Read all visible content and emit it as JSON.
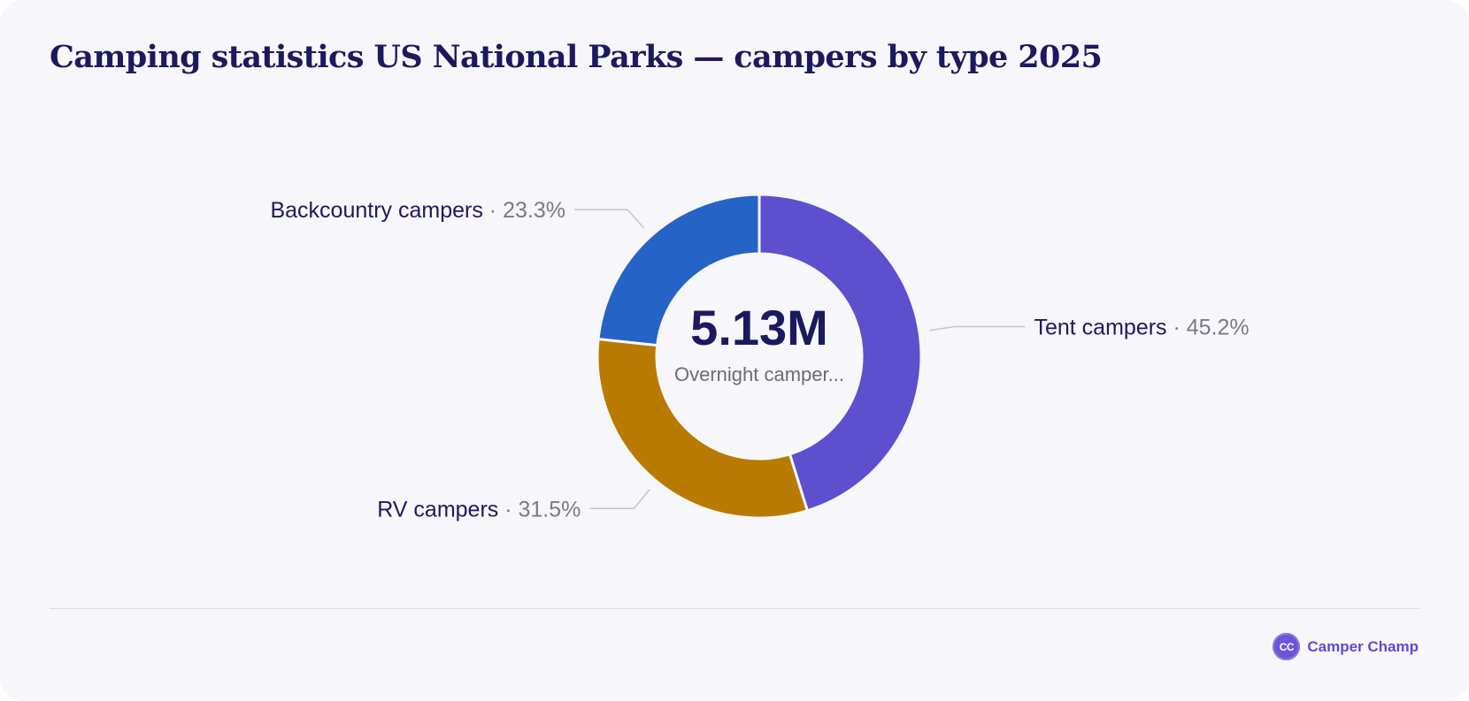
{
  "title": "Camping statistics US National Parks — campers by type 2025",
  "brand": {
    "logo_text": "CC",
    "name": "Camper Champ"
  },
  "chart_data": {
    "type": "pie",
    "style": "donut",
    "title": "Camping statistics US National Parks — campers by type 2025",
    "center_value": "5.13M",
    "center_label": "Overnight camper...",
    "slices": [
      {
        "name": "Tent campers",
        "value": 45.2,
        "value_label": "45.2%",
        "color": "#5d4fce"
      },
      {
        "name": "RV campers",
        "value": 31.5,
        "value_label": "31.5%",
        "color": "#b87b00"
      },
      {
        "name": "Backcountry campers",
        "value": 23.3,
        "value_label": "23.3%",
        "color": "#2563c6"
      }
    ]
  }
}
